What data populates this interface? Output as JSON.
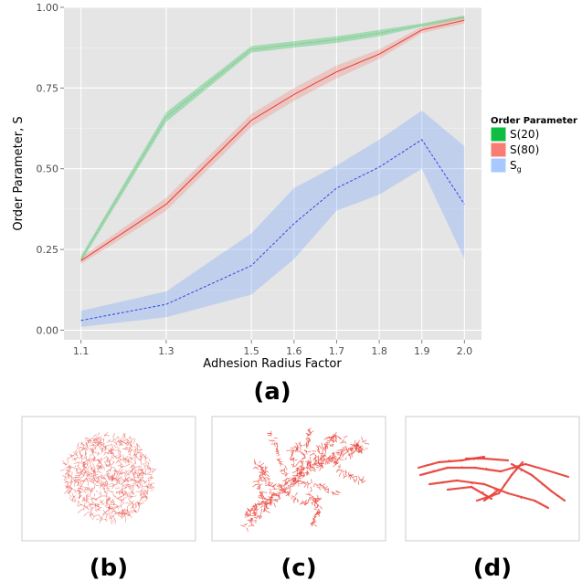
{
  "chart_data": {
    "type": "line",
    "xlabel": "Adhesion Radius Factor",
    "ylabel": "Order Parameter, S",
    "xlim": [
      1.06,
      2.04
    ],
    "ylim": [
      -0.03,
      1.0
    ],
    "x_ticks": [
      1.1,
      1.3,
      1.5,
      1.6,
      1.7,
      1.8,
      1.9,
      2.0
    ],
    "x_tick_labels": [
      "1.1",
      "1.3",
      "1.5",
      "1.6",
      "1.7",
      "1.8",
      "1.9",
      "2.0"
    ],
    "y_ticks": [
      0,
      0.25,
      0.5,
      0.75,
      1.0
    ],
    "y_tick_labels": [
      "0.00",
      "0.25",
      "0.50",
      "0.75",
      "1.00"
    ],
    "grid": true,
    "legend_title": "Order Parameter",
    "legend_position": "right",
    "series": [
      {
        "name": "S(20)",
        "color": "#00ba38",
        "line_color": "#7cc57c",
        "dash": "dotted",
        "x": [
          1.1,
          1.3,
          1.5,
          1.6,
          1.7,
          1.8,
          1.9,
          2.0
        ],
        "y": [
          0.22,
          0.66,
          0.87,
          0.885,
          0.9,
          0.92,
          0.945,
          0.97
        ],
        "lower": [
          0.21,
          0.645,
          0.86,
          0.875,
          0.89,
          0.91,
          0.94,
          0.965
        ],
        "upper": [
          0.23,
          0.675,
          0.88,
          0.895,
          0.91,
          0.93,
          0.95,
          0.975
        ]
      },
      {
        "name": "S(80)",
        "color": "#f8766d",
        "line_color": "#e8453c",
        "dash": "solid",
        "x": [
          1.1,
          1.3,
          1.5,
          1.6,
          1.7,
          1.8,
          1.9,
          2.0
        ],
        "y": [
          0.215,
          0.39,
          0.65,
          0.73,
          0.8,
          0.855,
          0.93,
          0.96
        ],
        "lower": [
          0.205,
          0.37,
          0.63,
          0.71,
          0.78,
          0.84,
          0.92,
          0.95
        ],
        "upper": [
          0.225,
          0.41,
          0.67,
          0.75,
          0.82,
          0.87,
          0.94,
          0.97
        ]
      },
      {
        "name": "S",
        "name_subscript": "g",
        "color": "#619cff",
        "line_color": "#3b50e6",
        "dash": "dashed",
        "x": [
          1.1,
          1.3,
          1.5,
          1.6,
          1.7,
          1.8,
          1.9,
          2.0
        ],
        "y": [
          0.03,
          0.08,
          0.2,
          0.33,
          0.44,
          0.505,
          0.59,
          0.39
        ],
        "lower": [
          0.01,
          0.04,
          0.11,
          0.22,
          0.37,
          0.42,
          0.5,
          0.22
        ],
        "upper": [
          0.06,
          0.12,
          0.3,
          0.44,
          0.51,
          0.59,
          0.68,
          0.57
        ]
      }
    ]
  },
  "panels": {
    "a_label": "(a)",
    "b_label": "(b)",
    "c_label": "(c)",
    "d_label": "(d)"
  },
  "colors": {
    "panel_background": "#e5e5e5",
    "gridline": "#ffffff",
    "network": "#e8453c"
  }
}
